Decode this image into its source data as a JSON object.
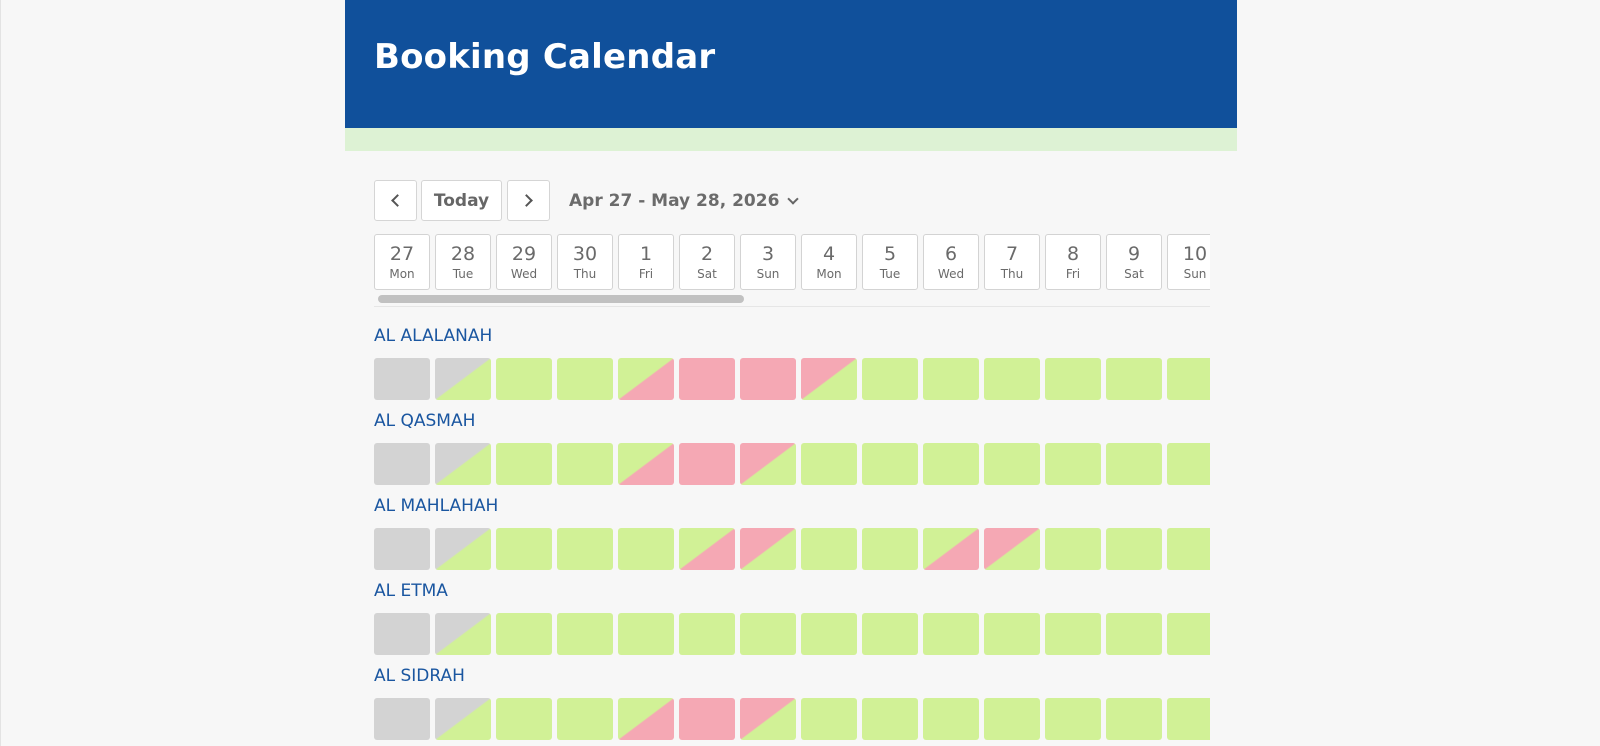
{
  "header": {
    "title": "Booking Calendar"
  },
  "toolbar": {
    "prev_icon": "chevron-left-icon",
    "today_label": "Today",
    "next_icon": "chevron-right-icon",
    "range_label": "Apr 27 - May 28, 2026",
    "range_icon": "chevron-down-icon"
  },
  "colors": {
    "header_bg": "#10509b",
    "strip_bg": "#ddf2d4",
    "available": "#d1f196",
    "booked": "#f5a8b4",
    "past": "#d3d3d3",
    "room_name": "#1a56a0"
  },
  "days": [
    {
      "num": "27",
      "wd": "Mon"
    },
    {
      "num": "28",
      "wd": "Tue"
    },
    {
      "num": "29",
      "wd": "Wed"
    },
    {
      "num": "30",
      "wd": "Thu"
    },
    {
      "num": "1",
      "wd": "Fri"
    },
    {
      "num": "2",
      "wd": "Sat"
    },
    {
      "num": "3",
      "wd": "Sun"
    },
    {
      "num": "4",
      "wd": "Mon"
    },
    {
      "num": "5",
      "wd": "Tue"
    },
    {
      "num": "6",
      "wd": "Wed"
    },
    {
      "num": "7",
      "wd": "Thu"
    },
    {
      "num": "8",
      "wd": "Fri"
    },
    {
      "num": "9",
      "wd": "Sat"
    },
    {
      "num": "10",
      "wd": "Sun"
    }
  ],
  "rooms": [
    {
      "name": "AL ALALANAH",
      "cells": [
        "past",
        "past-avail",
        "avail",
        "avail",
        "avail-booked",
        "booked",
        "booked",
        "booked-avail",
        "avail",
        "avail",
        "avail",
        "avail",
        "avail",
        "avail"
      ]
    },
    {
      "name": "AL QASMAH",
      "cells": [
        "past",
        "past-avail",
        "avail",
        "avail",
        "avail-booked",
        "booked",
        "booked-avail",
        "avail",
        "avail",
        "avail",
        "avail",
        "avail",
        "avail",
        "avail"
      ]
    },
    {
      "name": "AL MAHLAHAH",
      "cells": [
        "past",
        "past-avail",
        "avail",
        "avail",
        "avail",
        "avail-booked",
        "booked-avail",
        "avail",
        "avail",
        "avail-booked",
        "booked-avail",
        "avail",
        "avail",
        "avail"
      ]
    },
    {
      "name": "AL ETMA",
      "cells": [
        "past",
        "past-avail",
        "avail",
        "avail",
        "avail",
        "avail",
        "avail",
        "avail",
        "avail",
        "avail",
        "avail",
        "avail",
        "avail",
        "avail"
      ]
    },
    {
      "name": "AL SIDRAH",
      "cells": [
        "past",
        "past-avail",
        "avail",
        "avail",
        "avail-booked",
        "booked",
        "booked-avail",
        "avail",
        "avail",
        "avail",
        "avail",
        "avail",
        "avail",
        "avail"
      ]
    }
  ]
}
